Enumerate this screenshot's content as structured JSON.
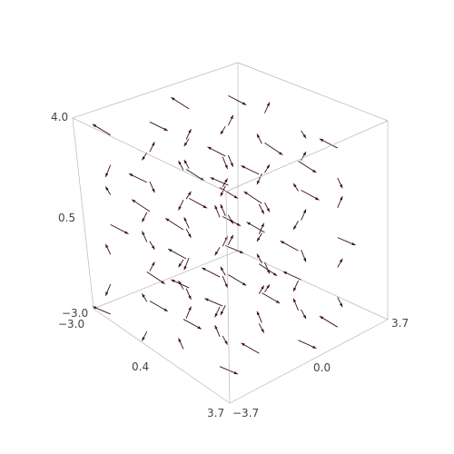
{
  "chart_data": {
    "type": "vector-field-3d",
    "title": "",
    "x_range": [
      -3.0,
      3.7
    ],
    "y_range": [
      -3.7,
      3.7
    ],
    "z_range": [
      -3.0,
      4.0
    ],
    "x_ticks": [
      "−3.0",
      "0.4",
      "3.7"
    ],
    "y_ticks": [
      "−3.7",
      "0.0",
      "3.7"
    ],
    "z_ticks": [
      "−3.0",
      "0.5",
      "4.0"
    ],
    "grid": false,
    "arrow_color": "#3a0f13",
    "grid_counts": {
      "x": 4,
      "y": 4,
      "z": 7
    }
  }
}
